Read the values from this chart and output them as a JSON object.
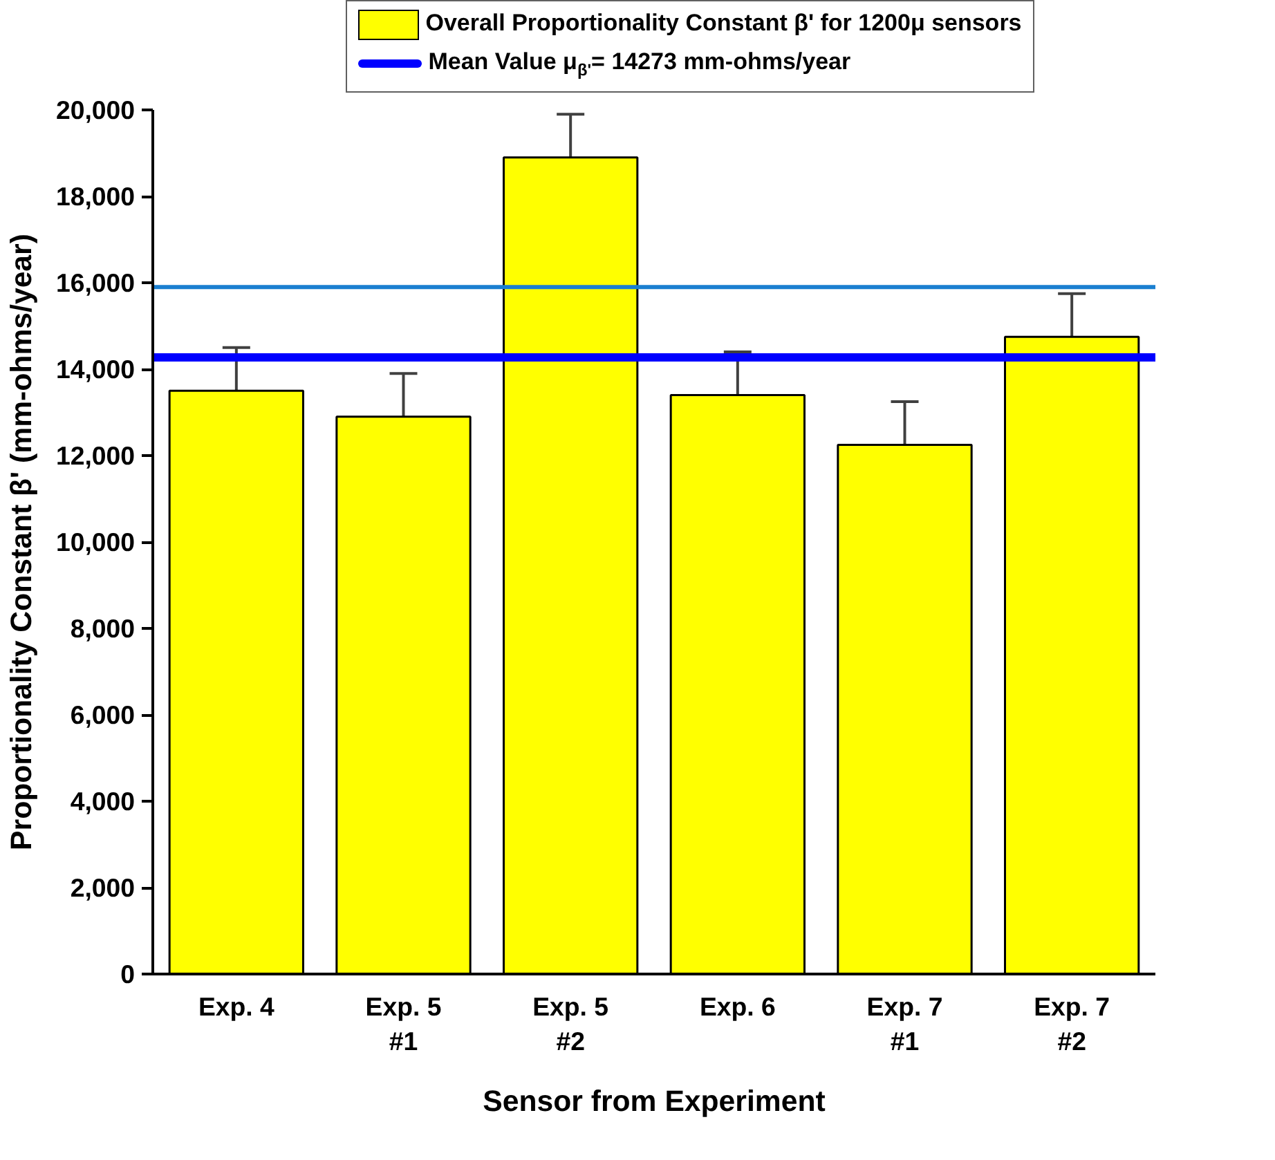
{
  "chart_data": {
    "type": "bar",
    "xlabel": "Sensor from Experiment",
    "ylabel": "Proportionality Constant β' (mm-ohms/year)",
    "categories": [
      "Exp. 4",
      "Exp. 5\n#1",
      "Exp. 5\n#2",
      "Exp. 6",
      "Exp. 7\n#1",
      "Exp. 7\n#2"
    ],
    "series": [
      {
        "name": "Overall Proportionality Constant β' for 1200μ sensors",
        "color": "#ffff00",
        "values": [
          13500,
          12900,
          18900,
          13400,
          12250,
          14750
        ],
        "errors": [
          1000,
          1000,
          1000,
          1000,
          1000,
          1000
        ]
      }
    ],
    "ref_lines": [
      {
        "axis": "y",
        "value": 14273,
        "label": "Mean Value μ$_{β'}$= 14273 mm-ohms/year",
        "color": "#0000ff"
      },
      {
        "axis": "y",
        "value": 15900,
        "color": "#1a7fd0"
      }
    ],
    "ylim": [
      0,
      20000
    ],
    "yticks": [
      0,
      {
        "value": 2000,
        "label": "2,000"
      },
      {
        "value": 4000,
        "label": "4,000"
      },
      {
        "value": 6000,
        "label": "6,000"
      },
      {
        "value": 8000,
        "label": "8,000"
      },
      {
        "value": 10000,
        "label": "10,000"
      },
      {
        "value": 12000,
        "label": "12,000"
      },
      {
        "value": 14000,
        "label": "14,000"
      },
      {
        "value": 16000,
        "label": "16,000"
      },
      {
        "value": 18000,
        "label": "18,000"
      },
      {
        "value": 20000,
        "label": "20,000"
      }
    ],
    "grid": false,
    "legend": "top"
  }
}
